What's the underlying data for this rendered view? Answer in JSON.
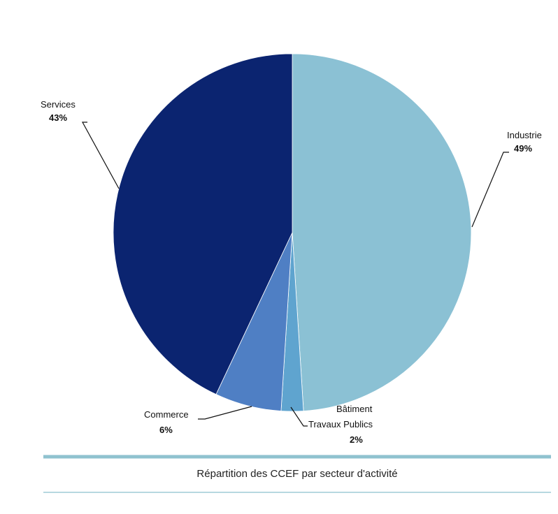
{
  "chart_data": {
    "type": "pie",
    "slices": [
      {
        "label": "Industrie",
        "value_label": "49%",
        "value": 49,
        "color": "#8bc1d4"
      },
      {
        "label": "Bâtiment Travaux Publics",
        "label_lines": [
          "Bâtiment",
          "Travaux Publics"
        ],
        "value_label": "2%",
        "value": 2,
        "color": "#5fa4cf"
      },
      {
        "label": "Commerce",
        "value_label": "6%",
        "value": 6,
        "color": "#4f7fc4"
      },
      {
        "label": "Services",
        "value_label": "43%",
        "value": 43,
        "color": "#0b2470"
      }
    ],
    "start": "12 o'clock",
    "direction": "clockwise"
  },
  "caption": {
    "text": "Répartition des CCEF par secteur d'activité",
    "rule_top_color": "#8fc2cf",
    "rule_bottom_color": "#b6d8e0"
  }
}
